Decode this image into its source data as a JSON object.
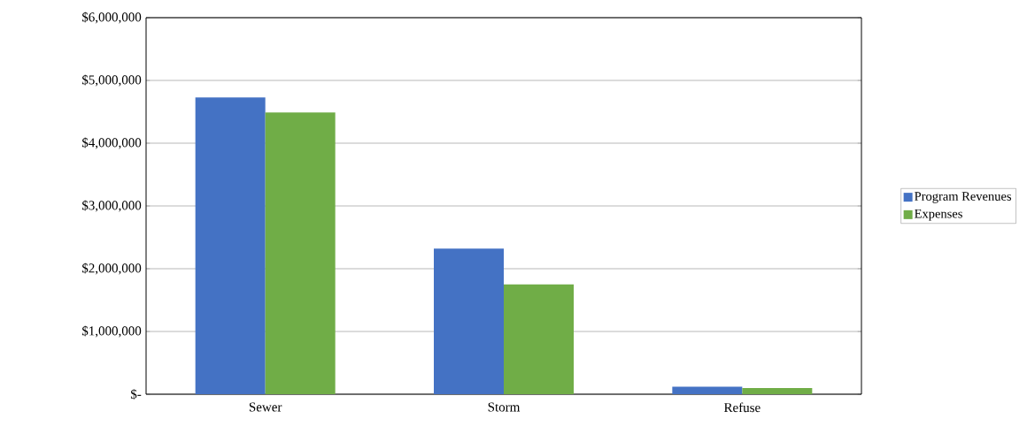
{
  "chart_data": {
    "type": "bar",
    "categories": [
      "Sewer",
      "Storm",
      "Refuse"
    ],
    "series": [
      {
        "name": "Program Revenues",
        "color": "#4472c4",
        "values": [
          4730000,
          2320000,
          120000
        ]
      },
      {
        "name": "Expenses",
        "color": "#70ad47",
        "values": [
          4490000,
          1750000,
          100000
        ]
      }
    ],
    "ylim": [
      0,
      6000000
    ],
    "yticks": [
      {
        "value": 0,
        "label": "$-"
      },
      {
        "value": 1000000,
        "label": "$1,000,000"
      },
      {
        "value": 2000000,
        "label": "$2,000,000"
      },
      {
        "value": 3000000,
        "label": "$3,000,000"
      },
      {
        "value": 4000000,
        "label": "$4,000,000"
      },
      {
        "value": 5000000,
        "label": "$5,000,000"
      },
      {
        "value": 6000000,
        "label": "$6,000,000"
      }
    ],
    "grid": "y",
    "legend": "right"
  }
}
